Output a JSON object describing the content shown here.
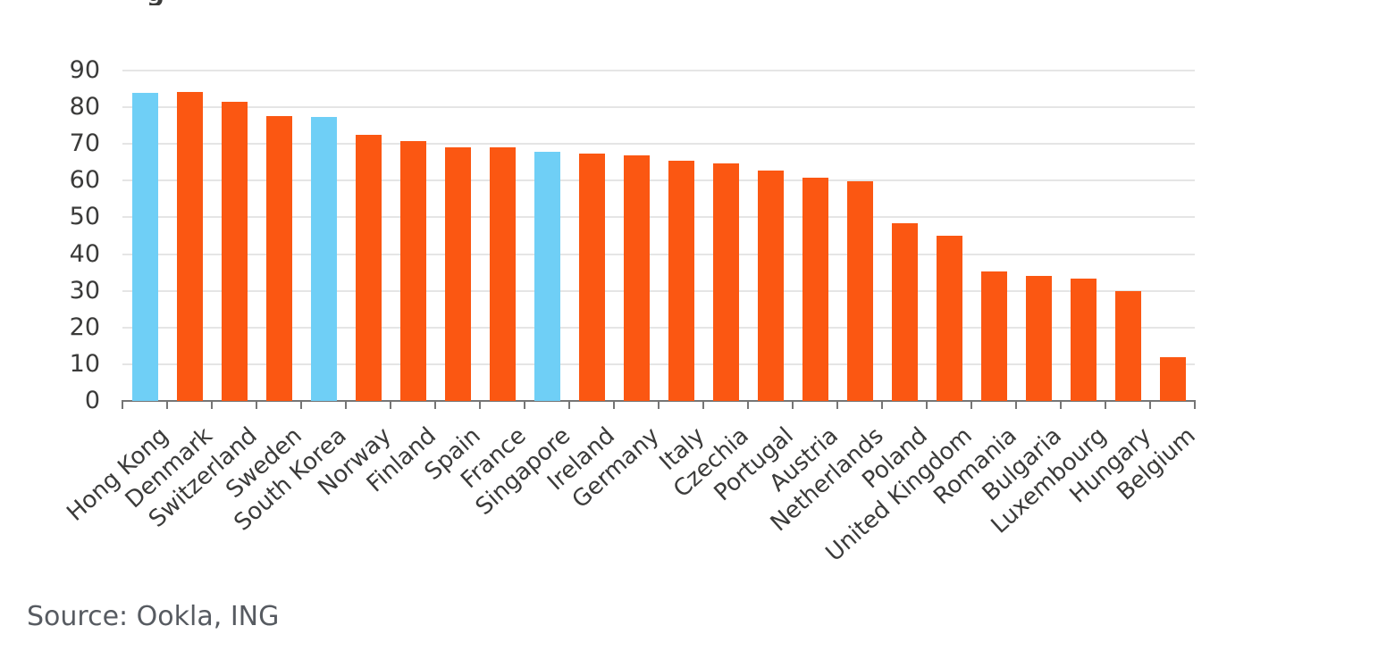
{
  "page": {
    "clipped_title_fragment": "g",
    "source_note": "Source: Ookla, ING"
  },
  "chart_data": {
    "type": "bar",
    "categories": [
      "Hong Kong",
      "Denmark",
      "Switzerland",
      "Sweden",
      "South Korea",
      "Norway",
      "Finland",
      "Spain",
      "France",
      "Singapore",
      "Ireland",
      "Germany",
      "Italy",
      "Czechia",
      "Portugal",
      "Austria",
      "Netherlands",
      "Poland",
      "United Kingdom",
      "Romania",
      "Bulgaria",
      "Luxembourg",
      "Hungary",
      "Belgium"
    ],
    "values": [
      83.9,
      84.1,
      81.6,
      77.7,
      77.4,
      72.6,
      70.7,
      69.2,
      69.1,
      67.9,
      67.4,
      66.9,
      65.4,
      64.8,
      62.8,
      60.7,
      59.8,
      48.3,
      44.9,
      35.3,
      34.0,
      33.4,
      29.9,
      11.9
    ],
    "highlight_indices": [
      0,
      4,
      9
    ],
    "colors": {
      "bar_default": "#fb5712",
      "bar_highlight": "#6fcff6",
      "gridline": "#e5e5e5",
      "axis": "#757575",
      "tick_text": "#3b3b3a",
      "source_text": "#575b61"
    },
    "ylim": [
      0,
      90
    ],
    "yticks": [
      0,
      10,
      20,
      30,
      40,
      50,
      60,
      70,
      80,
      90
    ],
    "xlabel": "",
    "ylabel": "",
    "grid": "horizontal",
    "legend": "none",
    "x_tick_rotation_deg": -42,
    "source": "Source: Ookla, ING"
  }
}
